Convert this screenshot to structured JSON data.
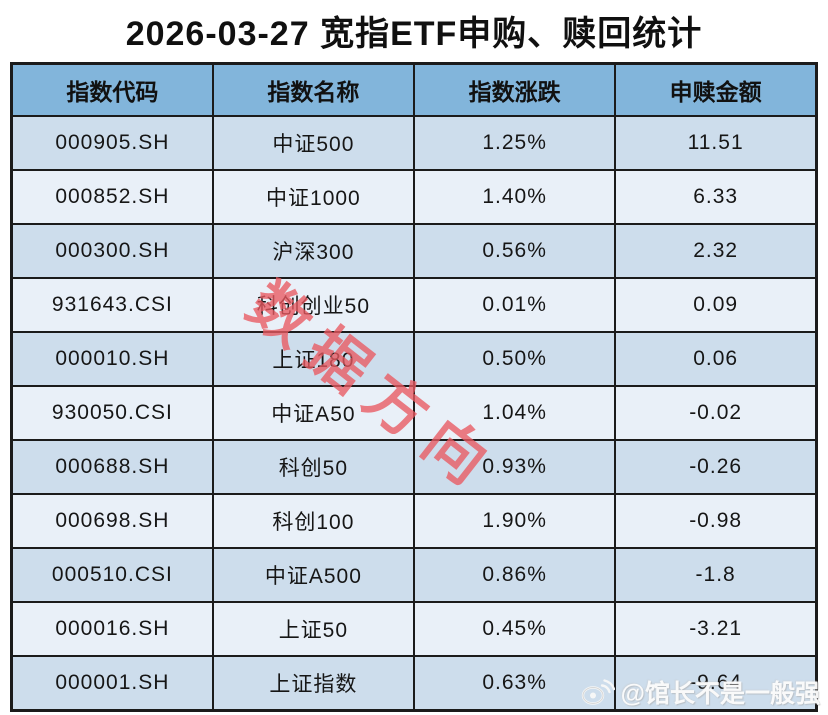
{
  "title": "2026-03-27 宽指ETF申购、赎回统计",
  "table": {
    "headers": [
      "指数代码",
      "指数名称",
      "指数涨跌",
      "申赎金额"
    ],
    "column_keys": [
      "index-code",
      "index-name",
      "index-change",
      "subscription-amount"
    ],
    "rows": [
      [
        "000905.SH",
        "中证500",
        "1.25%",
        "11.51"
      ],
      [
        "000852.SH",
        "中证1000",
        "1.40%",
        "6.33"
      ],
      [
        "000300.SH",
        "沪深300",
        "0.56%",
        "2.32"
      ],
      [
        "931643.CSI",
        "科创创业50",
        "0.01%",
        "0.09"
      ],
      [
        "000010.SH",
        "上证180",
        "0.50%",
        "0.06"
      ],
      [
        "930050.CSI",
        "中证A50",
        "1.04%",
        "-0.02"
      ],
      [
        "000688.SH",
        "科创50",
        "0.93%",
        "-0.26"
      ],
      [
        "000698.SH",
        "科创100",
        "1.90%",
        "-0.98"
      ],
      [
        "000510.CSI",
        "中证A500",
        "0.86%",
        "-1.8"
      ],
      [
        "000016.SH",
        "上证50",
        "0.45%",
        "-3.21"
      ],
      [
        "000001.SH",
        "上证指数",
        "0.63%",
        "-9.64"
      ]
    ]
  },
  "chart_data": {
    "type": "table",
    "title": "2026-03-27 宽指ETF申购、赎回统计",
    "columns": [
      "指数代码",
      "指数名称",
      "指数涨跌",
      "申赎金额"
    ],
    "rows": [
      {
        "指数代码": "000905.SH",
        "指数名称": "中证500",
        "指数涨跌_pct": 1.25,
        "申赎金额": 11.51
      },
      {
        "指数代码": "000852.SH",
        "指数名称": "中证1000",
        "指数涨跌_pct": 1.4,
        "申赎金额": 6.33
      },
      {
        "指数代码": "000300.SH",
        "指数名称": "沪深300",
        "指数涨跌_pct": 0.56,
        "申赎金额": 2.32
      },
      {
        "指数代码": "931643.CSI",
        "指数名称": "科创创业50",
        "指数涨跌_pct": 0.01,
        "申赎金额": 0.09
      },
      {
        "指数代码": "000010.SH",
        "指数名称": "上证180",
        "指数涨跌_pct": 0.5,
        "申赎金额": 0.06
      },
      {
        "指数代码": "930050.CSI",
        "指数名称": "中证A50",
        "指数涨跌_pct": 1.04,
        "申赎金额": -0.02
      },
      {
        "指数代码": "000688.SH",
        "指数名称": "科创50",
        "指数涨跌_pct": 0.93,
        "申赎金额": -0.26
      },
      {
        "指数代码": "000698.SH",
        "指数名称": "科创100",
        "指数涨跌_pct": 1.9,
        "申赎金额": -0.98
      },
      {
        "指数代码": "000510.CSI",
        "指数名称": "中证A500",
        "指数涨跌_pct": 0.86,
        "申赎金额": -1.8
      },
      {
        "指数代码": "000016.SH",
        "指数名称": "上证50",
        "指数涨跌_pct": 0.45,
        "申赎金额": -3.21
      },
      {
        "指数代码": "000001.SH",
        "指数名称": "上证指数",
        "指数涨跌_pct": 0.63,
        "申赎金额": -9.64
      }
    ]
  },
  "watermarks": {
    "diagonal_text": "数据方向",
    "credit_text": "@馆长不是一般强",
    "credit_icon": "weibo-icon"
  },
  "colors": {
    "header_bg": "#82b5db",
    "row_odd_bg": "#cdddec",
    "row_even_bg": "#e9f0f8",
    "border": "#1b1b1b",
    "diagonal_watermark": "#e95860",
    "title_text": "#101010"
  }
}
